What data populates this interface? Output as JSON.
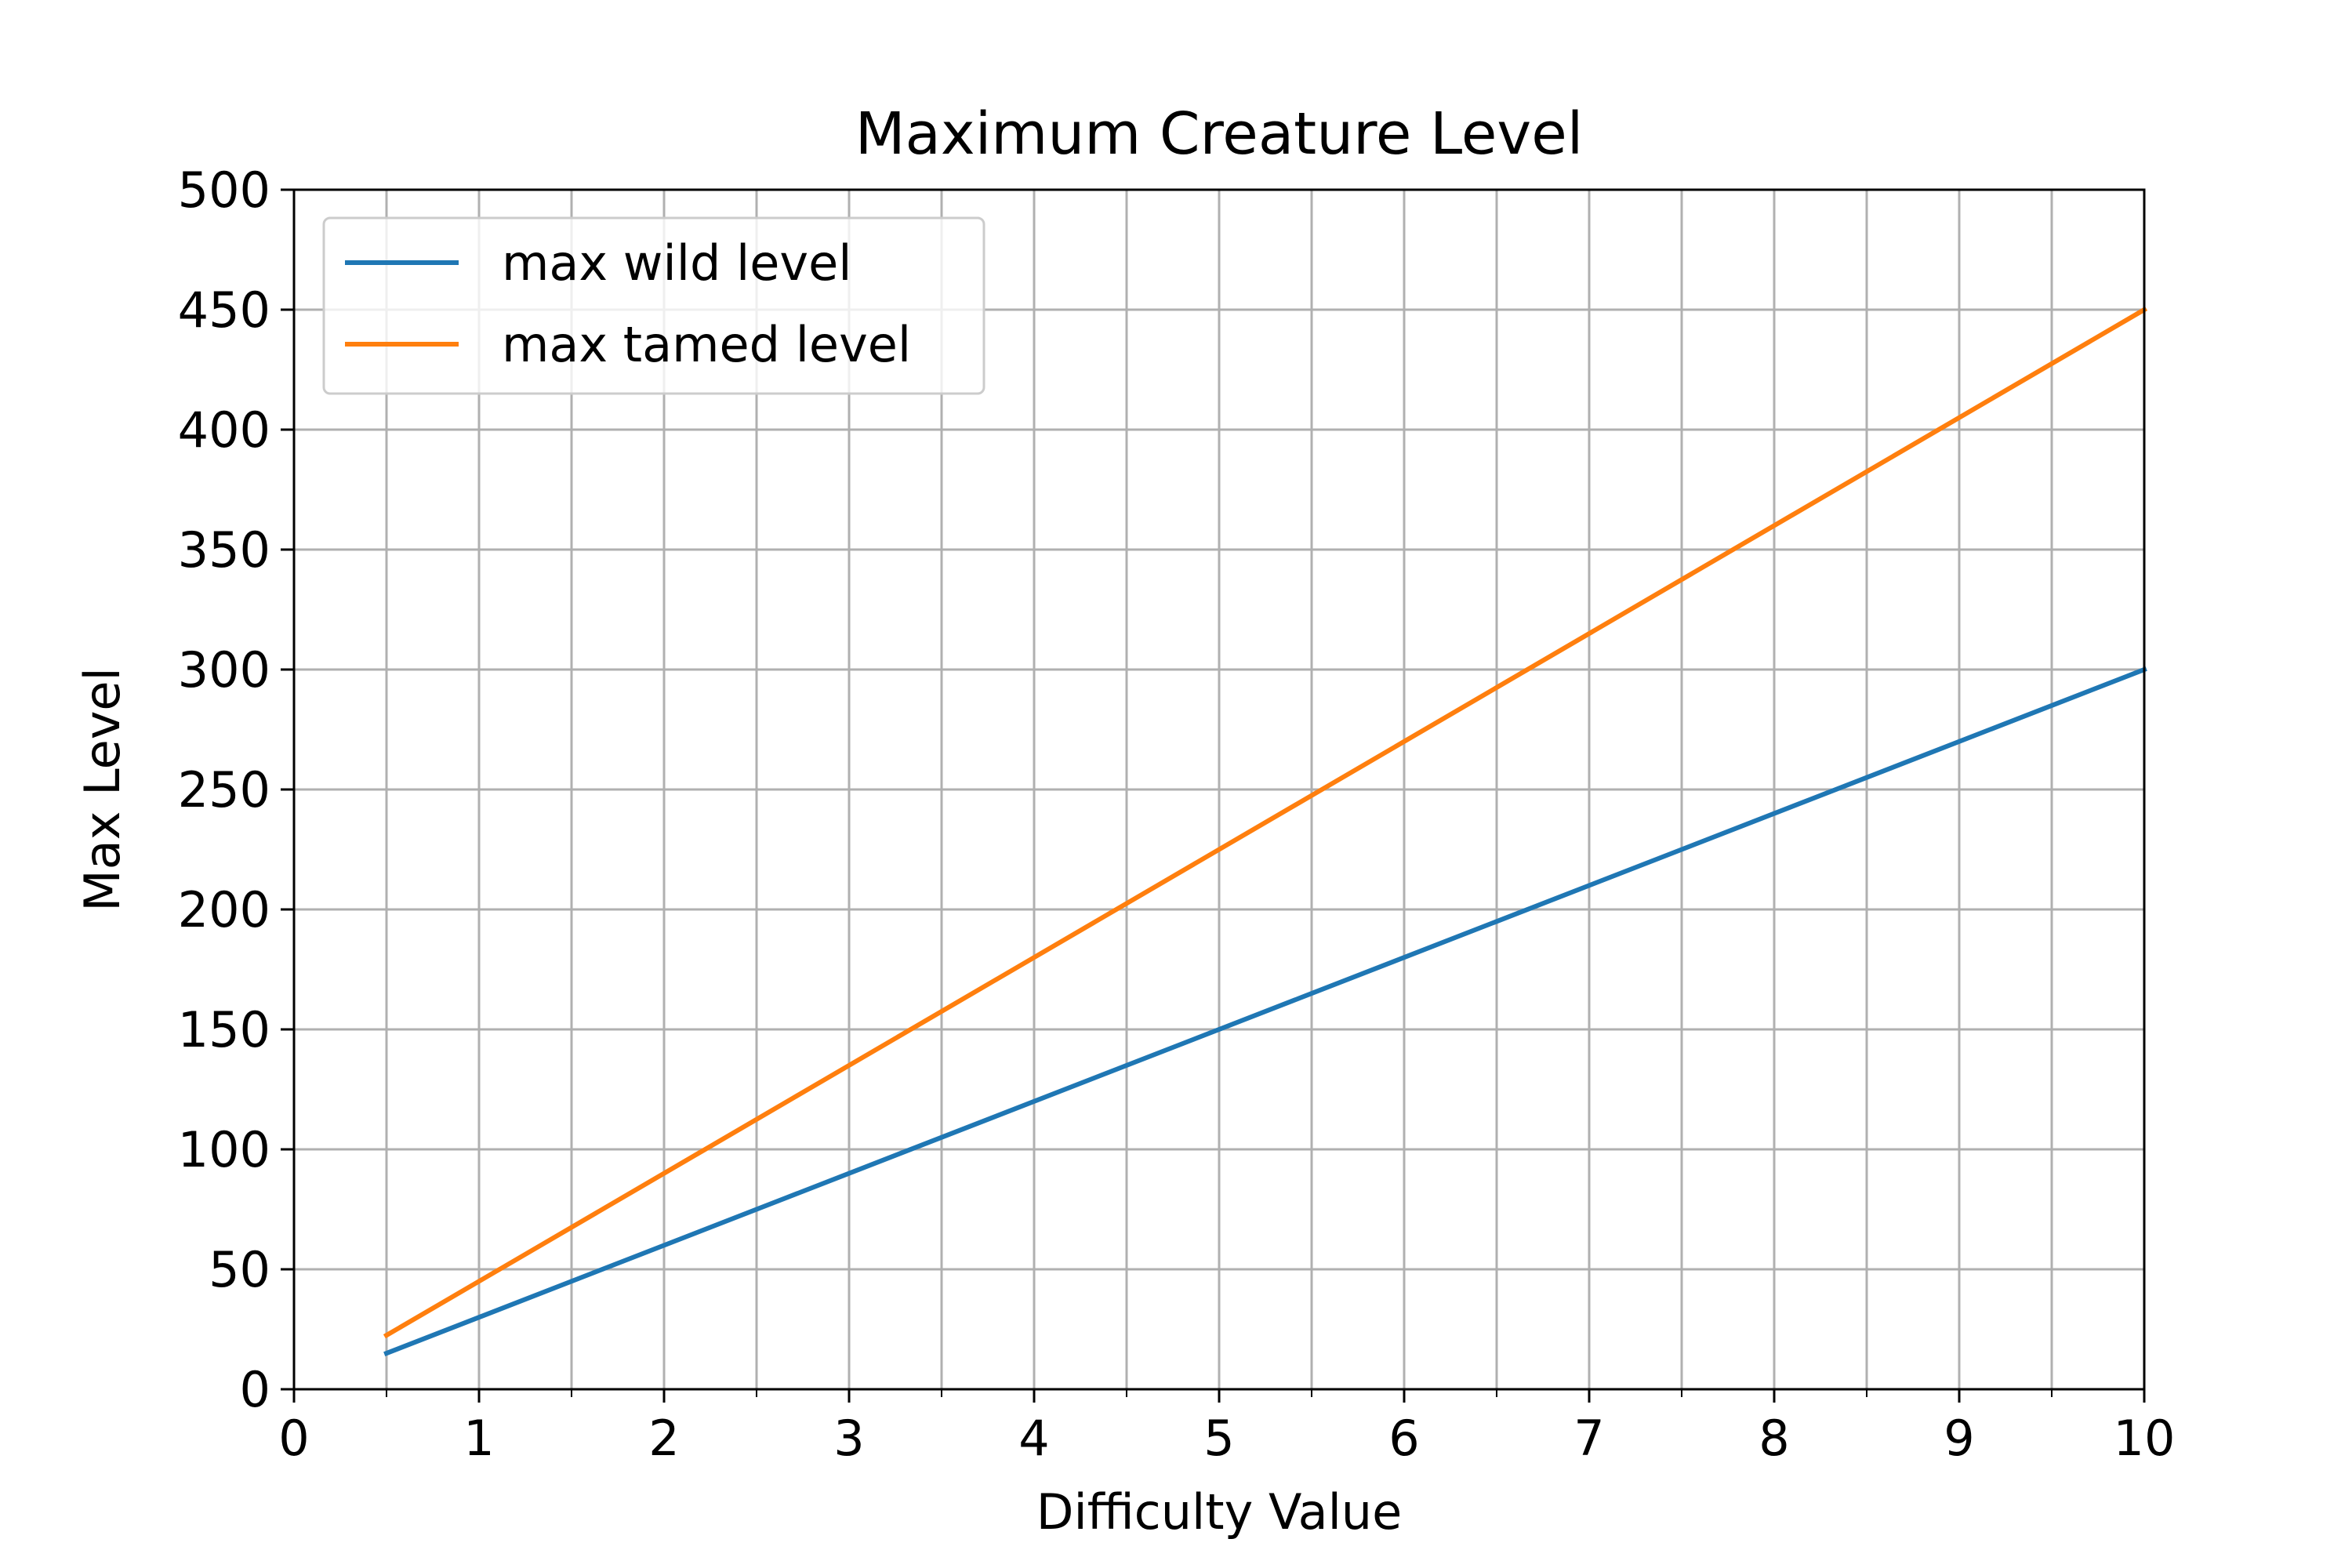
{
  "chart_data": {
    "type": "line",
    "title": "Maximum Creature Level",
    "xlabel": "Difficulty Value",
    "ylabel": "Max Level",
    "xlim": [
      0,
      10
    ],
    "ylim": [
      0,
      500
    ],
    "x_ticks": [
      0,
      1,
      2,
      3,
      4,
      5,
      6,
      7,
      8,
      9,
      10
    ],
    "x_minor_ticks": [
      0.5,
      1.5,
      2.5,
      3.5,
      4.5,
      5.5,
      6.5,
      7.5,
      8.5,
      9.5
    ],
    "y_ticks": [
      0,
      50,
      100,
      150,
      200,
      250,
      300,
      350,
      400,
      450,
      500
    ],
    "grid": true,
    "legend_position": "upper-left",
    "series": [
      {
        "name": "max wild level",
        "color": "#1f77b4",
        "x": [
          0.5,
          10
        ],
        "y": [
          15,
          300
        ]
      },
      {
        "name": "max tamed level",
        "color": "#ff7f0e",
        "x": [
          0.5,
          10
        ],
        "y": [
          22.5,
          450
        ]
      }
    ]
  },
  "colors": {
    "grid": "#b0b0b0",
    "axes": "#000000",
    "legend_border": "#cccccc"
  }
}
